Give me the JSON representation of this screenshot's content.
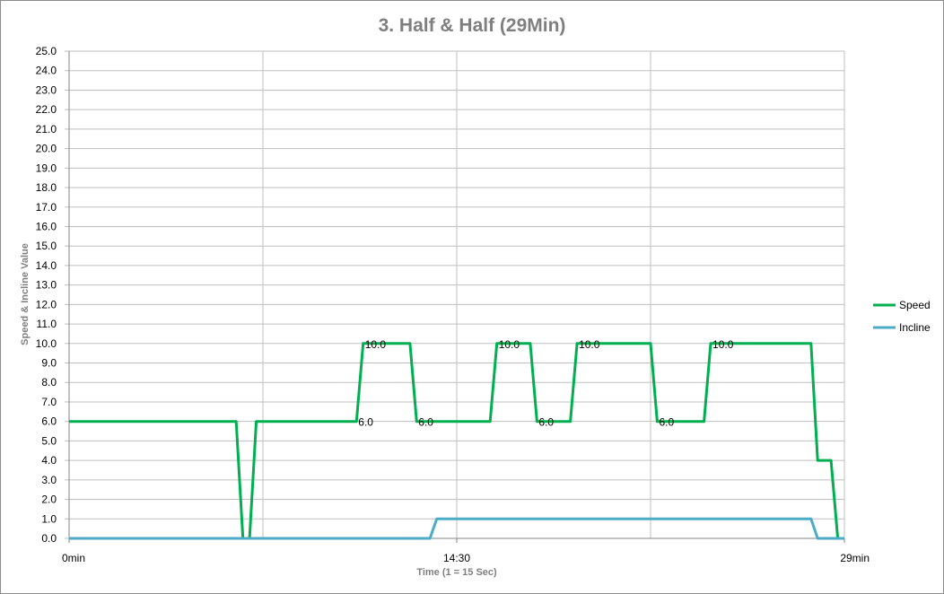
{
  "chart_data": {
    "type": "line",
    "title": "3. Half & Half (29Min)",
    "xlabel": "Time  (1 = 15 Sec)",
    "ylabel": "Speed  &  Incline Value",
    "ylim": [
      0,
      25
    ],
    "yticks": [
      "0.0",
      "1.0",
      "2.0",
      "3.0",
      "4.0",
      "5.0",
      "6.0",
      "7.0",
      "8.0",
      "9.0",
      "10.0",
      "11.0",
      "12.0",
      "13.0",
      "14.0",
      "15.0",
      "16.0",
      "17.0",
      "18.0",
      "19.0",
      "20.0",
      "21.0",
      "22.0",
      "23.0",
      "24.0",
      "25.0"
    ],
    "xlim": [
      0,
      116
    ],
    "xticks": [
      {
        "x": 0,
        "label": "0min"
      },
      {
        "x": 58,
        "label": "14:30"
      },
      {
        "x": 116,
        "label": "29min"
      }
    ],
    "x_gridlines": [
      29,
      58,
      87
    ],
    "grid": true,
    "legend": "right",
    "series": [
      {
        "name": "Speed",
        "color": "#00b050",
        "points": [
          [
            0,
            6
          ],
          [
            25,
            6
          ],
          [
            26,
            0
          ],
          [
            27,
            0
          ],
          [
            28,
            6
          ],
          [
            43,
            6
          ],
          [
            44,
            10
          ],
          [
            51,
            10
          ],
          [
            52,
            6
          ],
          [
            63,
            6
          ],
          [
            64,
            10
          ],
          [
            69,
            10
          ],
          [
            70,
            6
          ],
          [
            75,
            6
          ],
          [
            76,
            10
          ],
          [
            87,
            10
          ],
          [
            88,
            6
          ],
          [
            95,
            6
          ],
          [
            96,
            10
          ],
          [
            111,
            10
          ],
          [
            112,
            4
          ],
          [
            114,
            4
          ],
          [
            115,
            0
          ],
          [
            116,
            0
          ]
        ]
      },
      {
        "name": "Incline",
        "color": "#4bacc6",
        "points": [
          [
            0,
            0
          ],
          [
            54,
            0
          ],
          [
            55,
            1
          ],
          [
            111,
            1
          ],
          [
            112,
            0
          ],
          [
            116,
            0
          ]
        ]
      }
    ],
    "annotations": [
      {
        "x": 44,
        "y": 10,
        "text": "10.0"
      },
      {
        "x": 43,
        "y": 6,
        "text": "6.0"
      },
      {
        "x": 52,
        "y": 6,
        "text": "6.0"
      },
      {
        "x": 64,
        "y": 10,
        "text": "10.0"
      },
      {
        "x": 70,
        "y": 6,
        "text": "6.0"
      },
      {
        "x": 76,
        "y": 10,
        "text": "10.0"
      },
      {
        "x": 88,
        "y": 6,
        "text": "6.0"
      },
      {
        "x": 96,
        "y": 10,
        "text": "10.0"
      }
    ]
  }
}
